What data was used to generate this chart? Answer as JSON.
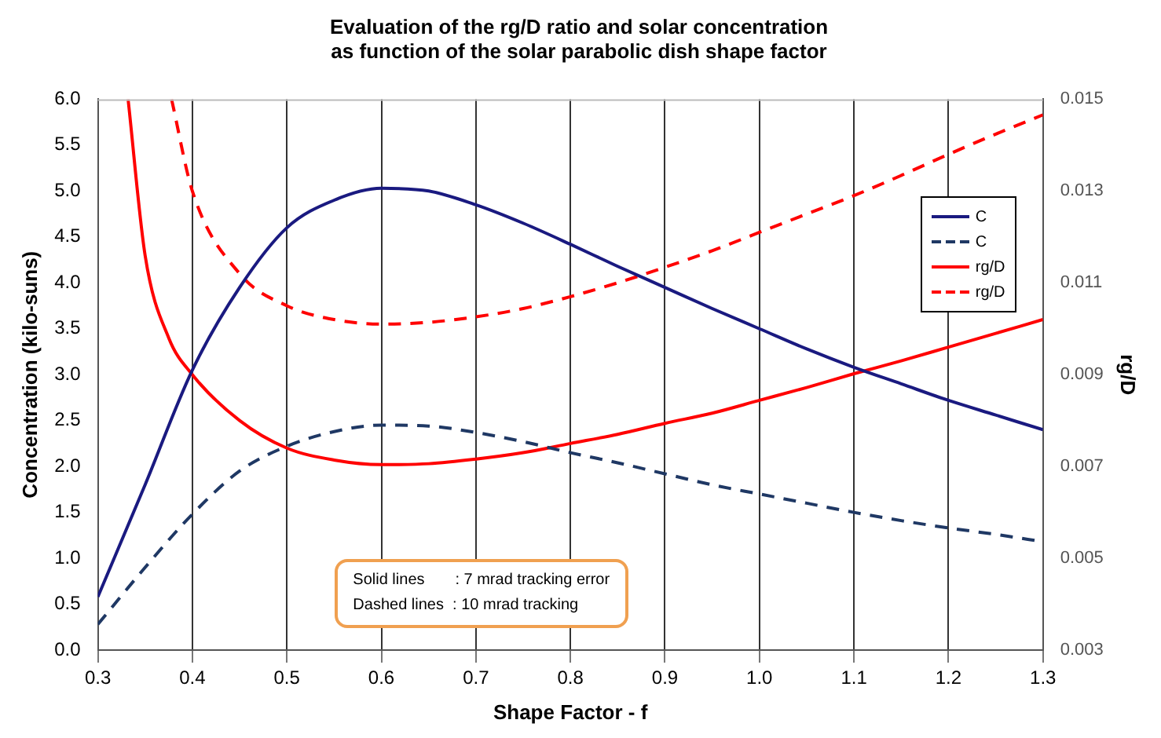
{
  "chart_data": {
    "type": "line",
    "title": "Evaluation of the rg/D ratio and solar concentration\nas function of the solar parabolic dish shape factor",
    "xlabel": "Shape Factor - f",
    "ylabel": "Concentration (kilo-suns)",
    "y2label": "rg/D",
    "xlim": [
      0.3,
      1.3
    ],
    "xticks": [
      0.3,
      0.4,
      0.5,
      0.6,
      0.7,
      0.8,
      0.9,
      {
        "value": 1,
        "label": "1.0"
      },
      1.1,
      1.2,
      1.3
    ],
    "ylim": [
      0,
      6
    ],
    "yticks": [
      {
        "value": 0,
        "label": "0.0"
      },
      0.5,
      {
        "value": 1,
        "label": "1.0"
      },
      1.5,
      {
        "value": 2,
        "label": "2.0"
      },
      2.5,
      {
        "value": 3,
        "label": "3.0"
      },
      3.5,
      {
        "value": 4,
        "label": "4.0"
      },
      4.5,
      {
        "value": 5,
        "label": "5.0"
      },
      5.5,
      {
        "value": 6,
        "label": "6.0"
      }
    ],
    "y2lim": [
      0.003,
      0.015
    ],
    "y2ticks": [
      0.003,
      0.005,
      0.007,
      0.009,
      0.011,
      0.013,
      0.015
    ],
    "grid": "x",
    "legend": "top right",
    "marker": "none",
    "series": [
      {
        "name": "C",
        "color": "#1a1a80",
        "line_style": "solid",
        "x": [
          0.3,
          0.35,
          0.4,
          0.45,
          0.5,
          0.55,
          0.6,
          0.65,
          0.7,
          0.75,
          0.8,
          0.85,
          0.9,
          0.95,
          1.0,
          1.05,
          1.1,
          1.15,
          1.2,
          1.25,
          1.3
        ],
        "values": [
          0.58,
          1.8,
          3.05,
          3.95,
          4.6,
          4.9,
          5.03,
          5.0,
          4.85,
          4.65,
          4.42,
          4.18,
          3.95,
          3.72,
          3.5,
          3.28,
          3.08,
          2.9,
          2.72,
          2.56,
          2.4
        ]
      },
      {
        "name": "C",
        "color": "#1f3864",
        "line_style": "dashed",
        "x": [
          0.3,
          0.35,
          0.4,
          0.45,
          0.5,
          0.55,
          0.6,
          0.65,
          0.7,
          0.75,
          0.8,
          0.85,
          0.9,
          0.95,
          1.0,
          1.05,
          1.1,
          1.15,
          1.2,
          1.25,
          1.3
        ],
        "values": [
          0.28,
          0.9,
          1.48,
          1.95,
          2.22,
          2.38,
          2.45,
          2.44,
          2.37,
          2.27,
          2.15,
          2.04,
          1.92,
          1.8,
          1.7,
          1.6,
          1.5,
          1.41,
          1.33,
          1.26,
          1.18
        ]
      },
      {
        "name": "rg/D",
        "color": "#ff0000",
        "line_style": "solid",
        "axis": "y2",
        "x": [
          0.332,
          0.35,
          0.375,
          0.4,
          0.45,
          0.5,
          0.55,
          0.6,
          0.65,
          0.7,
          0.75,
          0.8,
          0.85,
          0.9,
          0.95,
          1.0,
          1.05,
          1.1,
          1.15,
          1.2,
          1.25,
          1.3
        ],
        "values": [
          0.015,
          0.0116,
          0.0098,
          0.009,
          0.008,
          0.0074,
          0.00714,
          0.00704,
          0.00706,
          0.00716,
          0.0073,
          0.0075,
          0.0077,
          0.00794,
          0.00816,
          0.00844,
          0.00872,
          0.00902,
          0.0093,
          0.0096,
          0.0099,
          0.0102
        ]
      },
      {
        "name": "rg/D",
        "color": "#ff0000",
        "line_style": "dashed",
        "axis": "y2",
        "x": [
          0.378,
          0.4,
          0.45,
          0.5,
          0.55,
          0.6,
          0.65,
          0.7,
          0.75,
          0.8,
          0.85,
          0.9,
          0.95,
          1.0,
          1.05,
          1.1,
          1.15,
          1.2,
          1.25,
          1.3
        ],
        "values": [
          0.015,
          0.013,
          0.0112,
          0.0105,
          0.0102,
          0.0101,
          0.01014,
          0.01026,
          0.01044,
          0.0107,
          0.011,
          0.01134,
          0.0117,
          0.0121,
          0.0125,
          0.0129,
          0.01334,
          0.0138,
          0.01424,
          0.01466
        ]
      }
    ],
    "annotations": [
      "Solid lines       : 7 mrad tracking error",
      "Dashed lines  : 10 mrad tracking"
    ]
  }
}
